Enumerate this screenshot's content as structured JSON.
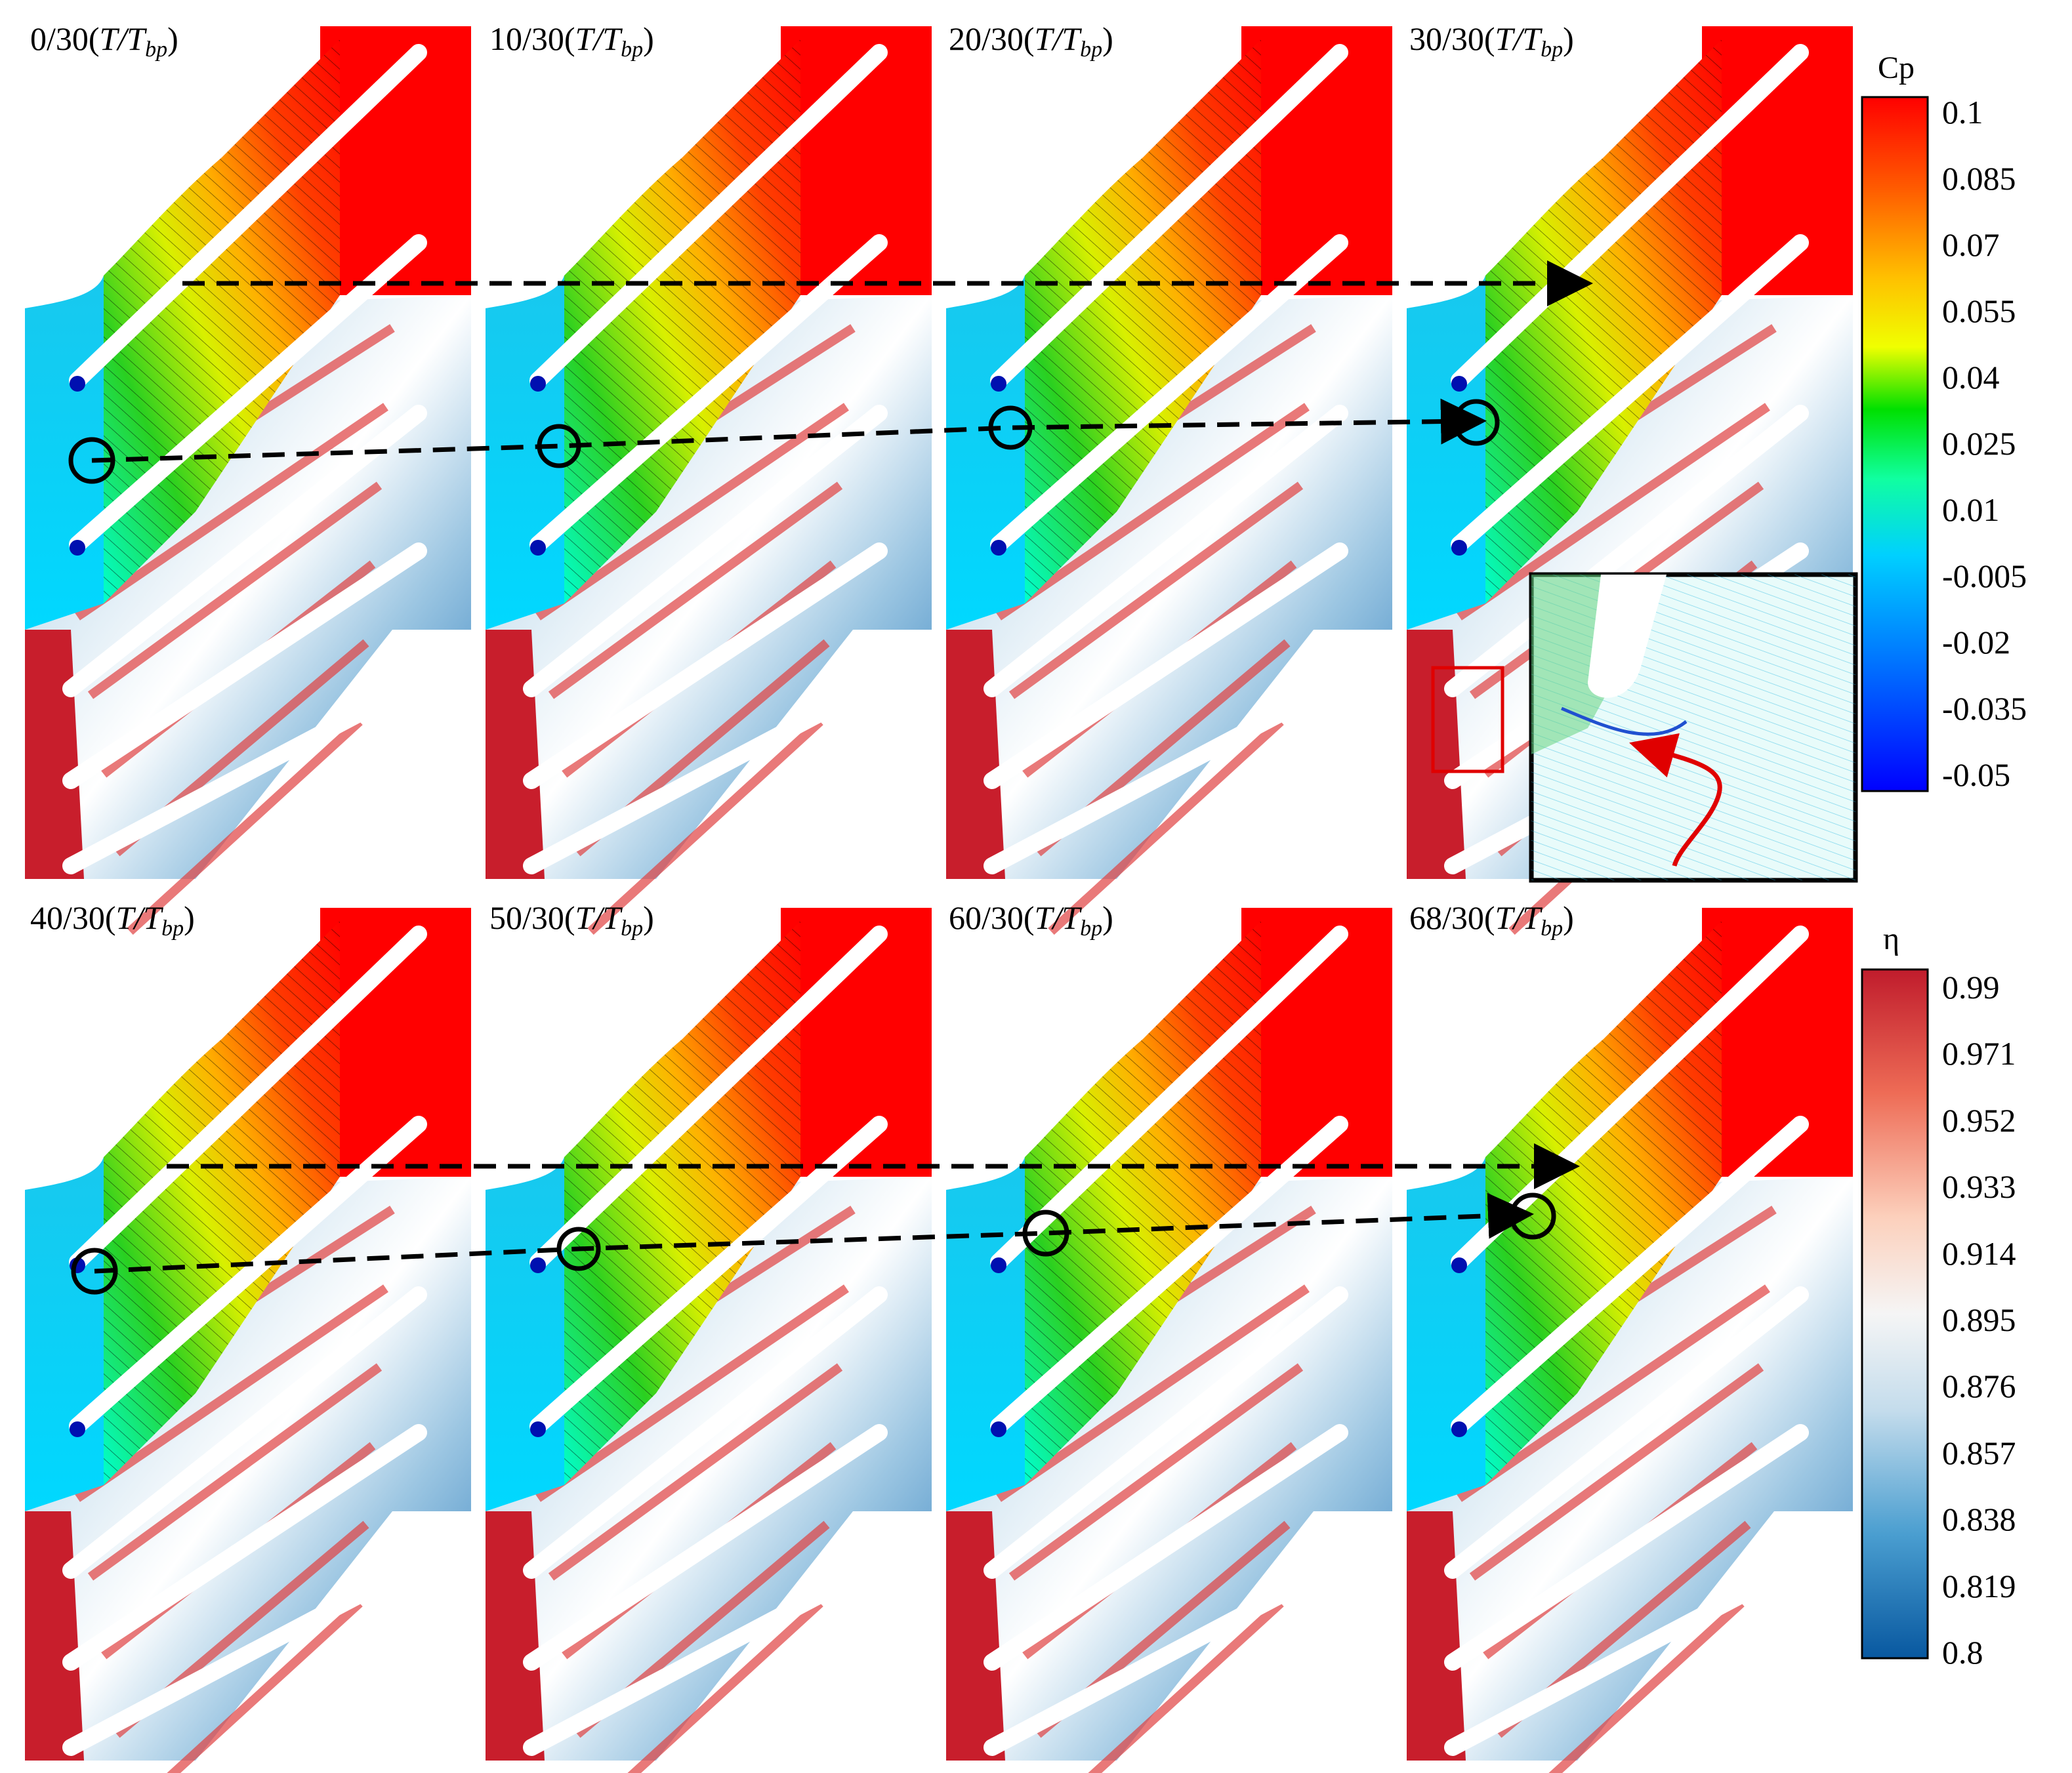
{
  "panels": [
    {
      "ratio": "0/30",
      "T": "T",
      "Tb": "T",
      "sub": "bp"
    },
    {
      "ratio": "10/30",
      "T": "T",
      "Tb": "T",
      "sub": "bp"
    },
    {
      "ratio": "20/30",
      "T": "T",
      "Tb": "T",
      "sub": "bp"
    },
    {
      "ratio": "30/30",
      "T": "T",
      "Tb": "T",
      "sub": "bp"
    },
    {
      "ratio": "40/30",
      "T": "T",
      "Tb": "T",
      "sub": "bp"
    },
    {
      "ratio": "50/30",
      "T": "T",
      "Tb": "T",
      "sub": "bp"
    },
    {
      "ratio": "60/30",
      "T": "T",
      "Tb": "T",
      "sub": "bp"
    },
    {
      "ratio": "68/30",
      "T": "T",
      "Tb": "T",
      "sub": "bp"
    }
  ],
  "colorbars": {
    "cp": {
      "title": "Cp",
      "ticks": [
        "0.1",
        "0.085",
        "0.07",
        "0.055",
        "0.04",
        "0.025",
        "0.01",
        "-0.005",
        "-0.02",
        "-0.035",
        "-0.05"
      ],
      "colors": [
        "#ff0000",
        "#ff6a00",
        "#ffc800",
        "#f5ff00",
        "#00e000",
        "#10ffb0",
        "#00c8ff",
        "#0078ff",
        "#0000ff"
      ]
    },
    "eta": {
      "title": "η",
      "ticks": [
        "0.99",
        "0.971",
        "0.952",
        "0.933",
        "0.914",
        "0.895",
        "0.876",
        "0.857",
        "0.838",
        "0.819",
        "0.8"
      ],
      "colors": [
        "#c8202e",
        "#ee6a55",
        "#fbc2a8",
        "#f7f7f7",
        "#bcd8ea",
        "#4a9fcf",
        "#0b6bb3",
        "#0859a0"
      ]
    }
  },
  "field_colors": {
    "cp_high": "#ff0000",
    "cp_mid": "#00d000",
    "cp_low": "#00c8ff",
    "eta_high": "#d0202c",
    "eta_low": "#2a7fbf"
  }
}
